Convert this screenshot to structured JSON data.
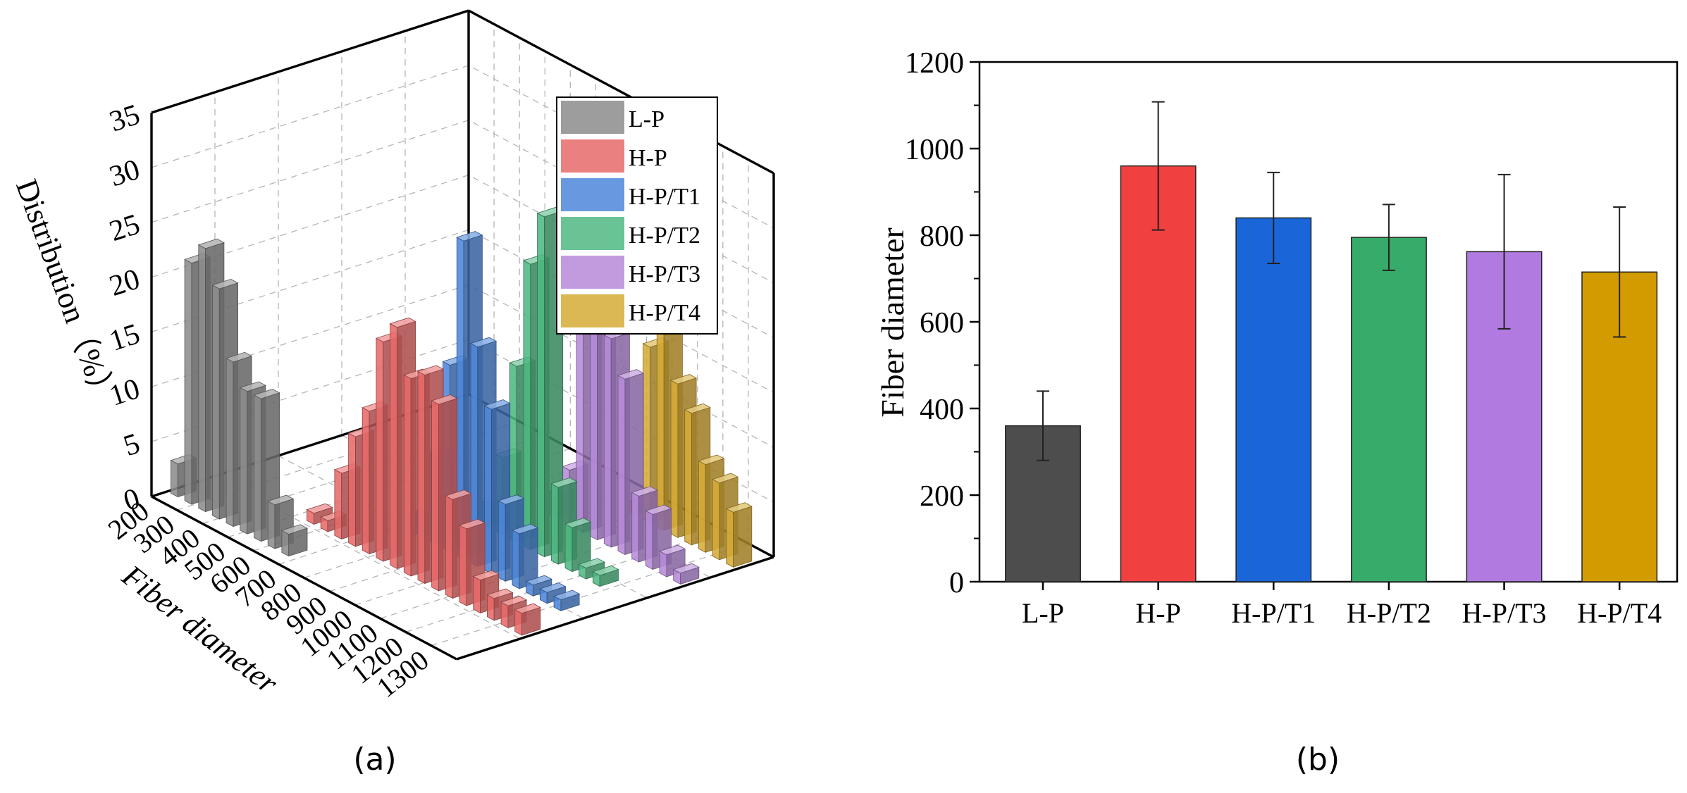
{
  "chart_data": [
    {
      "type": "bar",
      "panel": "(a)",
      "projection": "3d",
      "ylabel": "Distribution（%）",
      "xlabel": "Fiber diameter",
      "zlim": [
        0,
        35
      ],
      "z_ticks": [
        "0",
        "5",
        "10",
        "15",
        "20",
        "25",
        "30",
        "35"
      ],
      "x_ticks": [
        "200",
        "300",
        "400",
        "500",
        "600",
        "700",
        "800",
        "900",
        "1000",
        "1100",
        "1200",
        "1300"
      ],
      "legend": [
        "L-P",
        "H-P",
        "H-P/T1",
        "H-P/T2",
        "H-P/T3",
        "H-P/T4"
      ],
      "legend_position": "top-right",
      "series": [
        {
          "name": "L-P",
          "color": "#8c8c8c",
          "values": [
            3,
            22,
            24,
            21,
            15,
            13,
            13,
            4,
            2,
            0,
            0,
            0,
            0,
            0,
            0,
            0,
            0,
            0,
            0,
            0,
            0,
            0
          ]
        },
        {
          "name": "H-P",
          "color": "#e86a6a",
          "values": [
            0,
            0,
            0,
            0,
            0,
            0,
            1,
            1,
            6,
            10,
            13,
            20,
            22,
            18,
            19,
            17,
            9,
            7,
            3,
            2,
            2,
            2
          ]
        },
        {
          "name": "H-P/T1",
          "color": "#4d86d9",
          "values": [
            0,
            0,
            0,
            0,
            0,
            0,
            0,
            0,
            0,
            0,
            2,
            8,
            17,
            29,
            20,
            15,
            7,
            5,
            1,
            1,
            1,
            0
          ]
        },
        {
          "name": "H-P/T2",
          "color": "#4fb882",
          "values": [
            0,
            0,
            0,
            0,
            0,
            0,
            0,
            0,
            0,
            0,
            0,
            2,
            7,
            16,
            26,
            31,
            7,
            4,
            1,
            1,
            0,
            0
          ]
        },
        {
          "name": "H-P/T3",
          "color": "#b78ad9",
          "values": [
            0,
            0,
            0,
            0,
            0,
            0,
            0,
            0,
            0,
            0,
            0,
            0,
            2,
            5,
            20,
            22,
            19,
            16,
            6,
            5,
            2,
            1
          ]
        },
        {
          "name": "H-P/T4",
          "color": "#d6ab36",
          "values": [
            0,
            0,
            0,
            0,
            0,
            0,
            0,
            0,
            0,
            0,
            0,
            0,
            0,
            0,
            1,
            16,
            18,
            14,
            12,
            8,
            7,
            5
          ]
        }
      ]
    },
    {
      "type": "bar",
      "panel": "(b)",
      "title": "",
      "xlabel": "",
      "ylabel": "Fiber diameter",
      "ylim": [
        0,
        1200
      ],
      "y_ticks": [
        "0",
        "200",
        "400",
        "600",
        "800",
        "1000",
        "1200"
      ],
      "categories": [
        "L-P",
        "H-P",
        "H-P/T1",
        "H-P/T2",
        "H-P/T3",
        "H-P/T4"
      ],
      "values": [
        360,
        960,
        840,
        795,
        762,
        715
      ],
      "errors": [
        80,
        148,
        105,
        76,
        178,
        150
      ],
      "colors": [
        "#4d4d4d",
        "#f04040",
        "#1a66d9",
        "#37ab6a",
        "#b07ae0",
        "#d29b00"
      ]
    }
  ]
}
